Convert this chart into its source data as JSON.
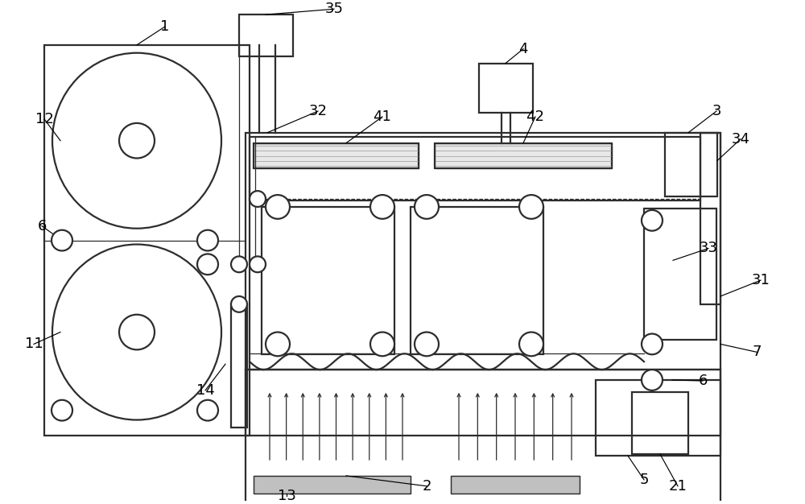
{
  "fig_width": 10.0,
  "fig_height": 6.26,
  "dpi": 100,
  "lc": "#2d2d2d",
  "bg": "#ffffff",
  "lw": 1.6,
  "lwt": 0.9
}
